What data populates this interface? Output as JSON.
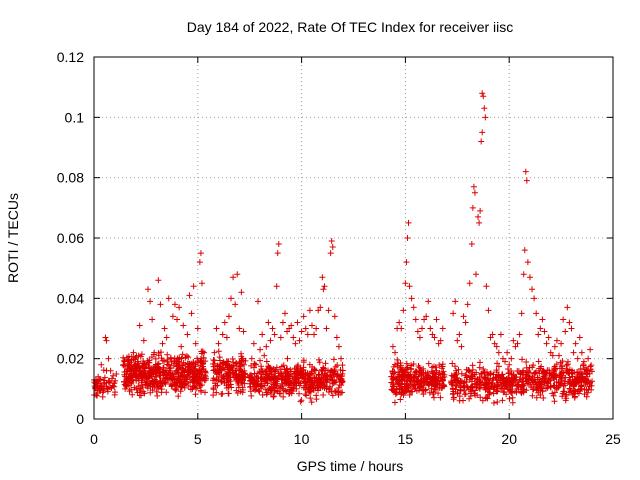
{
  "chart_data": {
    "type": "scatter",
    "title": "Day 184 of 2022, Rate Of TEC Index for receiver iisc",
    "xlabel": "GPS time / hours",
    "ylabel": "ROTI / TECUs",
    "xlim": [
      0,
      25
    ],
    "ylim": [
      0,
      0.12
    ],
    "xticks": [
      0,
      5,
      10,
      15,
      20,
      25
    ],
    "xtick_labels": [
      "0",
      "5",
      "10",
      "15",
      "20",
      "25"
    ],
    "yticks": [
      0,
      0.02,
      0.04,
      0.06,
      0.08,
      0.1,
      0.12
    ],
    "ytick_labels": [
      "0",
      "0.02",
      "0.04",
      "0.06",
      "0.08",
      "0.1",
      "0.12"
    ],
    "grid": true,
    "legend": "none",
    "marker": "plus",
    "color": "#dd0000",
    "series": [
      {
        "points": [
          [
            0.1,
            0.008
          ],
          [
            0.2,
            0.014
          ],
          [
            0.3,
            0.01
          ],
          [
            0.35,
            0.018
          ],
          [
            0.5,
            0.012
          ],
          [
            0.55,
            0.027
          ],
          [
            0.6,
            0.026
          ],
          [
            0.7,
            0.02
          ],
          [
            0.8,
            0.016
          ],
          [
            0.9,
            0.011
          ],
          [
            1.0,
            0.008
          ],
          [
            1.5,
            0.01
          ],
          [
            1.6,
            0.013
          ],
          [
            1.7,
            0.018
          ],
          [
            1.8,
            0.012
          ],
          [
            1.9,
            0.022
          ],
          [
            2.0,
            0.016
          ],
          [
            2.1,
            0.019
          ],
          [
            2.2,
            0.031
          ],
          [
            2.3,
            0.012
          ],
          [
            2.4,
            0.026
          ],
          [
            2.5,
            0.018
          ],
          [
            2.6,
            0.043
          ],
          [
            2.7,
            0.039
          ],
          [
            2.8,
            0.033
          ],
          [
            2.9,
            0.022
          ],
          [
            3.0,
            0.015
          ],
          [
            3.1,
            0.046
          ],
          [
            3.2,
            0.038
          ],
          [
            3.3,
            0.025
          ],
          [
            3.4,
            0.03
          ],
          [
            3.5,
            0.027
          ],
          [
            3.6,
            0.04
          ],
          [
            3.7,
            0.02
          ],
          [
            3.8,
            0.034
          ],
          [
            3.9,
            0.038
          ],
          [
            4.0,
            0.033
          ],
          [
            4.1,
            0.037
          ],
          [
            4.2,
            0.024
          ],
          [
            4.3,
            0.031
          ],
          [
            4.4,
            0.018
          ],
          [
            4.5,
            0.028
          ],
          [
            4.6,
            0.041
          ],
          [
            4.7,
            0.035
          ],
          [
            4.8,
            0.044
          ],
          [
            4.9,
            0.025
          ],
          [
            5.0,
            0.03
          ],
          [
            5.1,
            0.052
          ],
          [
            5.15,
            0.055
          ],
          [
            5.2,
            0.045
          ],
          [
            5.3,
            0.022
          ],
          [
            5.8,
            0.022
          ],
          [
            5.9,
            0.03
          ],
          [
            6.0,
            0.025
          ],
          [
            6.1,
            0.018
          ],
          [
            6.2,
            0.028
          ],
          [
            6.3,
            0.032
          ],
          [
            6.4,
            0.027
          ],
          [
            6.5,
            0.034
          ],
          [
            6.6,
            0.04
          ],
          [
            6.7,
            0.047
          ],
          [
            6.8,
            0.038
          ],
          [
            6.9,
            0.048
          ],
          [
            7.0,
            0.03
          ],
          [
            7.1,
            0.042
          ],
          [
            7.2,
            0.029
          ],
          [
            7.6,
            0.02
          ],
          [
            7.7,
            0.025
          ],
          [
            7.8,
            0.018
          ],
          [
            7.9,
            0.039
          ],
          [
            8.0,
            0.023
          ],
          [
            8.1,
            0.028
          ],
          [
            8.2,
            0.021
          ],
          [
            8.3,
            0.024
          ],
          [
            8.4,
            0.032
          ],
          [
            8.5,
            0.026
          ],
          [
            8.6,
            0.03
          ],
          [
            8.7,
            0.028
          ],
          [
            8.8,
            0.044
          ],
          [
            8.85,
            0.055
          ],
          [
            8.9,
            0.058
          ],
          [
            9.0,
            0.027
          ],
          [
            9.1,
            0.032
          ],
          [
            9.2,
            0.035
          ],
          [
            9.3,
            0.029
          ],
          [
            9.4,
            0.03
          ],
          [
            9.5,
            0.031
          ],
          [
            9.6,
            0.027
          ],
          [
            9.7,
            0.025
          ],
          [
            9.8,
            0.032
          ],
          [
            9.9,
            0.026
          ],
          [
            10.0,
            0.029
          ],
          [
            10.1,
            0.034
          ],
          [
            10.2,
            0.03
          ],
          [
            10.3,
            0.028
          ],
          [
            10.4,
            0.036
          ],
          [
            10.5,
            0.031
          ],
          [
            10.6,
            0.028
          ],
          [
            10.7,
            0.03
          ],
          [
            10.8,
            0.036
          ],
          [
            10.9,
            0.037
          ],
          [
            11.0,
            0.047
          ],
          [
            11.05,
            0.043
          ],
          [
            11.1,
            0.044
          ],
          [
            11.2,
            0.03
          ],
          [
            11.3,
            0.036
          ],
          [
            11.4,
            0.055
          ],
          [
            11.45,
            0.059
          ],
          [
            11.5,
            0.057
          ],
          [
            11.6,
            0.034
          ],
          [
            11.7,
            0.027
          ],
          [
            11.8,
            0.024
          ],
          [
            11.9,
            0.02
          ],
          [
            14.4,
            0.024
          ],
          [
            14.5,
            0.022
          ],
          [
            14.6,
            0.03
          ],
          [
            14.7,
            0.032
          ],
          [
            14.8,
            0.03
          ],
          [
            14.9,
            0.036
          ],
          [
            15.0,
            0.045
          ],
          [
            15.05,
            0.052
          ],
          [
            15.1,
            0.06
          ],
          [
            15.15,
            0.065
          ],
          [
            15.2,
            0.044
          ],
          [
            15.3,
            0.04
          ],
          [
            15.4,
            0.037
          ],
          [
            15.5,
            0.033
          ],
          [
            15.6,
            0.029
          ],
          [
            15.7,
            0.027
          ],
          [
            15.8,
            0.03
          ],
          [
            15.9,
            0.033
          ],
          [
            16.0,
            0.034
          ],
          [
            16.1,
            0.039
          ],
          [
            16.2,
            0.03
          ],
          [
            16.3,
            0.028
          ],
          [
            16.4,
            0.027
          ],
          [
            16.5,
            0.033
          ],
          [
            16.6,
            0.025
          ],
          [
            16.7,
            0.026
          ],
          [
            16.8,
            0.03
          ],
          [
            17.3,
            0.035
          ],
          [
            17.4,
            0.039
          ],
          [
            17.5,
            0.026
          ],
          [
            17.6,
            0.028
          ],
          [
            17.7,
            0.024
          ],
          [
            17.8,
            0.034
          ],
          [
            17.9,
            0.032
          ],
          [
            18.0,
            0.038
          ],
          [
            18.1,
            0.045
          ],
          [
            18.2,
            0.058
          ],
          [
            18.25,
            0.07
          ],
          [
            18.3,
            0.077
          ],
          [
            18.35,
            0.075
          ],
          [
            18.4,
            0.048
          ],
          [
            18.5,
            0.067
          ],
          [
            18.55,
            0.065
          ],
          [
            18.6,
            0.069
          ],
          [
            18.65,
            0.092
          ],
          [
            18.7,
            0.108
          ],
          [
            18.75,
            0.107
          ],
          [
            18.8,
            0.103
          ],
          [
            18.85,
            0.1
          ],
          [
            18.7,
            0.095
          ],
          [
            18.9,
            0.044
          ],
          [
            19.0,
            0.036
          ],
          [
            19.1,
            0.027
          ],
          [
            19.2,
            0.028
          ],
          [
            19.3,
            0.025
          ],
          [
            19.4,
            0.024
          ],
          [
            19.5,
            0.022
          ],
          [
            19.6,
            0.028
          ],
          [
            19.7,
            0.02
          ],
          [
            19.8,
            0.019
          ],
          [
            19.9,
            0.022
          ],
          [
            20.0,
            0.018
          ],
          [
            20.1,
            0.02
          ],
          [
            20.2,
            0.026
          ],
          [
            20.3,
            0.024
          ],
          [
            20.4,
            0.025
          ],
          [
            20.5,
            0.028
          ],
          [
            20.6,
            0.035
          ],
          [
            20.7,
            0.048
          ],
          [
            20.75,
            0.056
          ],
          [
            20.8,
            0.082
          ],
          [
            20.85,
            0.079
          ],
          [
            20.9,
            0.052
          ],
          [
            21.0,
            0.047
          ],
          [
            21.1,
            0.043
          ],
          [
            21.2,
            0.04
          ],
          [
            21.3,
            0.035
          ],
          [
            21.4,
            0.028
          ],
          [
            21.5,
            0.03
          ],
          [
            21.6,
            0.033
          ],
          [
            21.7,
            0.029
          ],
          [
            21.8,
            0.025
          ],
          [
            21.9,
            0.027
          ],
          [
            22.0,
            0.022
          ],
          [
            22.1,
            0.021
          ],
          [
            22.2,
            0.024
          ],
          [
            22.3,
            0.026
          ],
          [
            22.4,
            0.021
          ],
          [
            22.5,
            0.025
          ],
          [
            22.6,
            0.033
          ],
          [
            22.7,
            0.029
          ],
          [
            22.8,
            0.037
          ],
          [
            22.9,
            0.032
          ],
          [
            23.0,
            0.03
          ],
          [
            23.1,
            0.022
          ],
          [
            23.2,
            0.025
          ],
          [
            23.3,
            0.02
          ],
          [
            23.4,
            0.027
          ],
          [
            23.5,
            0.022
          ],
          [
            23.6,
            0.019
          ],
          [
            23.7,
            0.017
          ],
          [
            23.8,
            0.02
          ],
          [
            23.9,
            0.023
          ]
        ]
      }
    ],
    "dense_bands": [
      {
        "x_range": [
          0.0,
          1.1
        ],
        "y_center": 0.011,
        "y_spread": 0.006,
        "count": 60
      },
      {
        "x_range": [
          1.4,
          5.4
        ],
        "y_center": 0.015,
        "y_spread": 0.009,
        "count": 520
      },
      {
        "x_range": [
          5.7,
          7.3
        ],
        "y_center": 0.015,
        "y_spread": 0.009,
        "count": 170
      },
      {
        "x_range": [
          7.5,
          12.0
        ],
        "y_center": 0.013,
        "y_spread": 0.008,
        "count": 450
      },
      {
        "x_range": [
          14.3,
          16.9
        ],
        "y_center": 0.013,
        "y_spread": 0.008,
        "count": 280
      },
      {
        "x_range": [
          17.2,
          20.2
        ],
        "y_center": 0.012,
        "y_spread": 0.008,
        "count": 260
      },
      {
        "x_range": [
          20.2,
          24.0
        ],
        "y_center": 0.013,
        "y_spread": 0.008,
        "count": 330
      }
    ]
  }
}
